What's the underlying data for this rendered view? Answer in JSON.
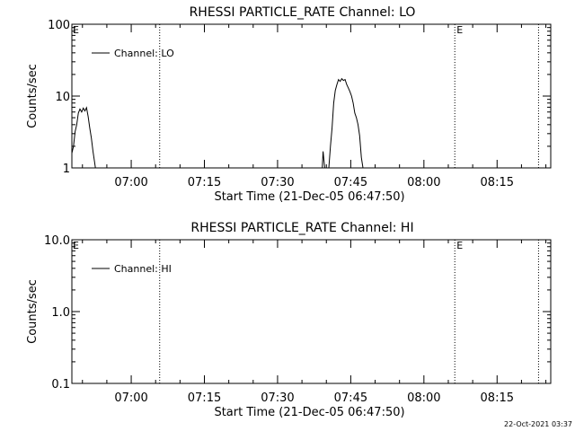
{
  "footer": {
    "timestamp": "22-Oct-2021 03:37"
  },
  "chart_data": [
    {
      "type": "line",
      "title": "RHESSI PARTICLE_RATE Channel: LO",
      "xlabel": "Start Time (21-Dec-05 06:47:50)",
      "ylabel": "Counts/sec",
      "xlim": [
        "06:47:50",
        "08:26:00"
      ],
      "ylim": [
        1,
        100
      ],
      "yscale": "log",
      "xticks": [
        "07:00",
        "07:15",
        "07:30",
        "07:45",
        "08:00",
        "08:15"
      ],
      "yticks": [
        "1",
        "10",
        "100"
      ],
      "legend": {
        "label": "Channel: LO",
        "position": "top-left"
      },
      "markers": [
        {
          "time": "07:05:50",
          "label": ""
        },
        {
          "time": "08:06:20",
          "label": "E"
        },
        {
          "time": "08:23:30",
          "label": ""
        }
      ],
      "edge_label": "E",
      "series": [
        {
          "name": "Channel: LO",
          "points": [
            [
              "06:47:50",
              1.6
            ],
            [
              "06:48:10",
              2.0
            ],
            [
              "06:48:30",
              3.2
            ],
            [
              "06:48:50",
              4.0
            ],
            [
              "06:49:10",
              5.8
            ],
            [
              "06:49:30",
              6.6
            ],
            [
              "06:49:50",
              6.0
            ],
            [
              "06:50:10",
              6.8
            ],
            [
              "06:50:30",
              6.2
            ],
            [
              "06:50:50",
              6.9
            ],
            [
              "06:51:10",
              5.2
            ],
            [
              "06:51:30",
              3.6
            ],
            [
              "06:51:50",
              2.6
            ],
            [
              "06:52:10",
              1.7
            ],
            [
              "06:52:30",
              1.2
            ],
            [
              "06:52:40",
              1.0
            ]
          ]
        },
        {
          "name": "Channel: LO",
          "points": [
            [
              "07:39:10",
              1.0
            ],
            [
              "07:39:20",
              1.7
            ],
            [
              "07:39:40",
              1.0
            ],
            [
              "07:40:30",
              1.0
            ],
            [
              "07:40:50",
              2.0
            ],
            [
              "07:41:10",
              3.6
            ],
            [
              "07:41:30",
              8.0
            ],
            [
              "07:41:50",
              12.0
            ],
            [
              "07:42:10",
              14.5
            ],
            [
              "07:42:30",
              17.0
            ],
            [
              "07:42:50",
              16.0
            ],
            [
              "07:43:10",
              17.5
            ],
            [
              "07:43:30",
              16.5
            ],
            [
              "07:43:50",
              17.0
            ],
            [
              "07:44:10",
              14.5
            ],
            [
              "07:44:30",
              13.0
            ],
            [
              "07:44:50",
              11.5
            ],
            [
              "07:45:10",
              10.0
            ],
            [
              "07:45:30",
              8.0
            ],
            [
              "07:45:50",
              5.8
            ],
            [
              "07:46:10",
              5.0
            ],
            [
              "07:46:30",
              4.0
            ],
            [
              "07:46:50",
              2.8
            ],
            [
              "07:47:10",
              1.4
            ],
            [
              "07:47:30",
              1.0
            ]
          ]
        }
      ]
    },
    {
      "type": "line",
      "title": "RHESSI PARTICLE_RATE Channel: HI",
      "xlabel": "Start Time (21-Dec-05 06:47:50)",
      "ylabel": "Counts/sec",
      "xlim": [
        "06:47:50",
        "08:26:00"
      ],
      "ylim": [
        0.1,
        10
      ],
      "yscale": "log",
      "xticks": [
        "07:00",
        "07:15",
        "07:30",
        "07:45",
        "08:00",
        "08:15"
      ],
      "yticks": [
        "0.1",
        "1.0",
        "10.0"
      ],
      "legend": {
        "label": "Channel: HI",
        "position": "top-left"
      },
      "markers": [
        {
          "time": "07:05:50",
          "label": ""
        },
        {
          "time": "08:06:20",
          "label": "E"
        },
        {
          "time": "08:23:30",
          "label": ""
        }
      ],
      "edge_label": "E",
      "series": [
        {
          "name": "Channel: HI",
          "points": []
        }
      ]
    }
  ]
}
